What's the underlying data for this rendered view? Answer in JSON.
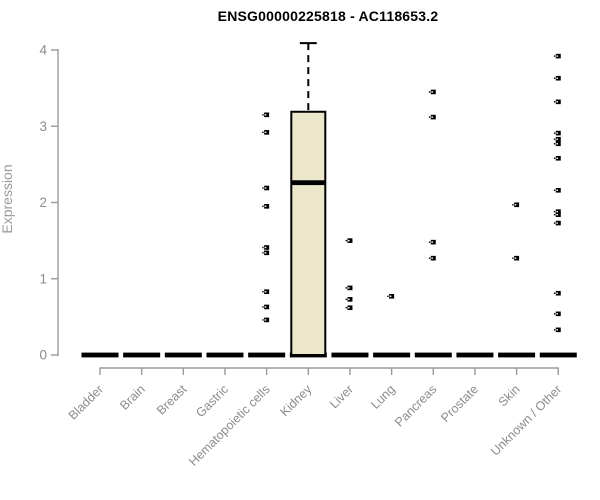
{
  "title": "ENSG00000225818 - AC118653.2",
  "colors": {
    "box_fill": "#ECE7CB",
    "box_stroke": "#000000",
    "median": "#000000",
    "outlier": "#000000",
    "axis": "#9B9B9B",
    "tick_label": "#8C8C8C",
    "axis_label": "#9B9B9B",
    "title": "#000000",
    "background": "#FFFFFF"
  },
  "chart_data": {
    "type": "boxplot",
    "title": "ENSG00000225818 - AC118653.2",
    "xlabel": "",
    "ylabel": "Expression",
    "ylim": [
      0,
      4.1
    ],
    "yticks": [
      0,
      1,
      2,
      3,
      4
    ],
    "grid": false,
    "legend": null,
    "categories": [
      "Bladder",
      "Brain",
      "Breast",
      "Gastric",
      "Hematopoietic cells",
      "Kidney",
      "Liver",
      "Lung",
      "Pancreas",
      "Prostate",
      "Skin",
      "Unknown / Other"
    ],
    "series": [
      {
        "category": "Bladder",
        "q1": 0,
        "median": 0,
        "q3": 0,
        "whisker_low": 0,
        "whisker_high": 0,
        "outliers": []
      },
      {
        "category": "Brain",
        "q1": 0,
        "median": 0,
        "q3": 0,
        "whisker_low": 0,
        "whisker_high": 0,
        "outliers": []
      },
      {
        "category": "Breast",
        "q1": 0,
        "median": 0,
        "q3": 0,
        "whisker_low": 0,
        "whisker_high": 0,
        "outliers": []
      },
      {
        "category": "Gastric",
        "q1": 0,
        "median": 0,
        "q3": 0,
        "whisker_low": 0,
        "whisker_high": 0,
        "outliers": []
      },
      {
        "category": "Hematopoietic cells",
        "q1": 0,
        "median": 0,
        "q3": 0,
        "whisker_low": 0,
        "whisker_high": 0,
        "outliers": [
          3.15,
          2.92,
          2.19,
          1.95,
          1.41,
          1.34,
          0.83,
          0.63,
          0.46
        ]
      },
      {
        "category": "Kidney",
        "q1": 0,
        "median": 2.26,
        "q3": 3.19,
        "whisker_low": 0,
        "whisker_high": 4.09,
        "outliers": []
      },
      {
        "category": "Liver",
        "q1": 0,
        "median": 0,
        "q3": 0,
        "whisker_low": 0,
        "whisker_high": 0,
        "outliers": [
          1.5,
          0.88,
          0.73,
          0.62
        ]
      },
      {
        "category": "Lung",
        "q1": 0,
        "median": 0,
        "q3": 0,
        "whisker_low": 0,
        "whisker_high": 0,
        "outliers": [
          0.77
        ]
      },
      {
        "category": "Pancreas",
        "q1": 0,
        "median": 0,
        "q3": 0,
        "whisker_low": 0,
        "whisker_high": 0,
        "outliers": [
          3.45,
          3.12,
          1.48,
          1.27
        ]
      },
      {
        "category": "Prostate",
        "q1": 0,
        "median": 0,
        "q3": 0,
        "whisker_low": 0,
        "whisker_high": 0,
        "outliers": []
      },
      {
        "category": "Skin",
        "q1": 0,
        "median": 0,
        "q3": 0,
        "whisker_low": 0,
        "whisker_high": 0,
        "outliers": [
          1.97,
          1.27
        ]
      },
      {
        "category": "Unknown / Other",
        "q1": 0,
        "median": 0,
        "q3": 0,
        "whisker_low": 0,
        "whisker_high": 0,
        "outliers": [
          3.92,
          3.63,
          3.32,
          2.91,
          2.83,
          2.77,
          2.58,
          2.16,
          1.88,
          1.84,
          1.73,
          0.81,
          0.54,
          0.33
        ]
      }
    ]
  }
}
